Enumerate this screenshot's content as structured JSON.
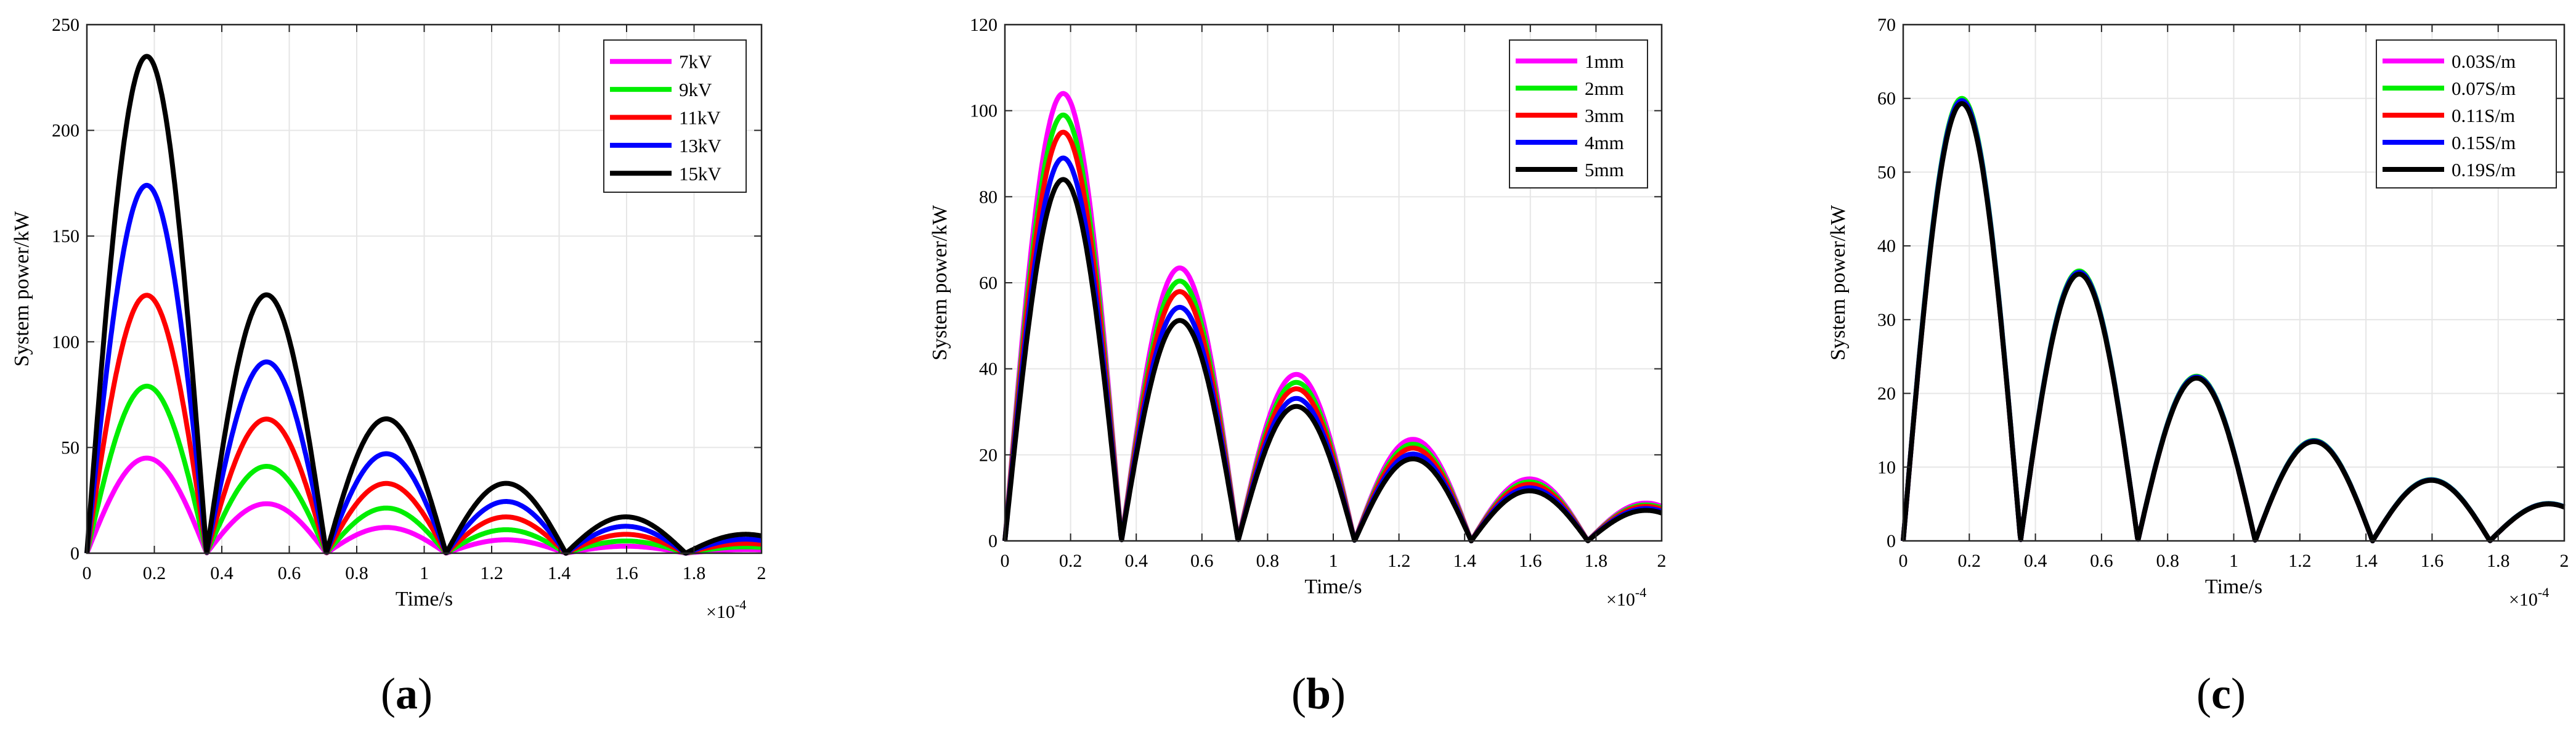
{
  "figure": {
    "chart_data": [
      {
        "type": "line",
        "panel_label": "a",
        "xlabel": "Time/s",
        "ylabel": "System power/kW",
        "x_exponent_label": "×10",
        "x_exponent_power": "-4",
        "xlim": [
          0,
          2
        ],
        "ylim": [
          0,
          250
        ],
        "xticks": [
          0,
          0.2,
          0.4,
          0.6,
          0.8,
          1,
          1.2,
          1.4,
          1.6,
          1.8,
          2
        ],
        "xtick_labels": [
          "0",
          "0.2",
          "0.4",
          "0.6",
          "0.8",
          "1",
          "1.2",
          "1.4",
          "1.6",
          "1.8",
          "2"
        ],
        "yticks": [
          0,
          50,
          100,
          150,
          200,
          250
        ],
        "ytick_labels": [
          "0",
          "50",
          "100",
          "150",
          "200",
          "250"
        ],
        "grid": true,
        "legend_position": "top-right",
        "half_period": 0.355,
        "decay": 0.52,
        "series": [
          {
            "name": "7kV",
            "color": "#ff00ff",
            "peak": 45
          },
          {
            "name": "9kV",
            "color": "#00ee00",
            "peak": 79
          },
          {
            "name": "11kV",
            "color": "#ff0000",
            "peak": 122
          },
          {
            "name": "13kV",
            "color": "#0000ff",
            "peak": 174
          },
          {
            "name": "15kV",
            "color": "#000000",
            "peak": 235
          }
        ]
      },
      {
        "type": "line",
        "panel_label": "b",
        "xlabel": "Time/s",
        "ylabel": "System power/kW",
        "x_exponent_label": "×10",
        "x_exponent_power": "-4",
        "xlim": [
          0,
          2
        ],
        "ylim": [
          0,
          120
        ],
        "xticks": [
          0,
          0.2,
          0.4,
          0.6,
          0.8,
          1,
          1.2,
          1.4,
          1.6,
          1.8,
          2
        ],
        "xtick_labels": [
          "0",
          "0.2",
          "0.4",
          "0.6",
          "0.8",
          "1",
          "1.2",
          "1.4",
          "1.6",
          "1.8",
          "2"
        ],
        "yticks": [
          0,
          20,
          40,
          60,
          80,
          100,
          120
        ],
        "ytick_labels": [
          "0",
          "20",
          "40",
          "60",
          "80",
          "100",
          "120"
        ],
        "grid": true,
        "legend_position": "top-right",
        "half_period": 0.355,
        "decay": 0.61,
        "series": [
          {
            "name": "1mm",
            "color": "#ff00ff",
            "peak": 104
          },
          {
            "name": "2mm",
            "color": "#00ee00",
            "peak": 99
          },
          {
            "name": "3mm",
            "color": "#ff0000",
            "peak": 95
          },
          {
            "name": "4mm",
            "color": "#0000ff",
            "peak": 89
          },
          {
            "name": "5mm",
            "color": "#000000",
            "peak": 84
          }
        ]
      },
      {
        "type": "line",
        "panel_label": "c",
        "xlabel": "Time/s",
        "ylabel": "System power/kW",
        "x_exponent_label": "×10",
        "x_exponent_power": "-4",
        "xlim": [
          0,
          2
        ],
        "ylim": [
          0,
          70
        ],
        "xticks": [
          0,
          0.2,
          0.4,
          0.6,
          0.8,
          1,
          1.2,
          1.4,
          1.6,
          1.8,
          2
        ],
        "xtick_labels": [
          "0",
          "0.2",
          "0.4",
          "0.6",
          "0.8",
          "1",
          "1.2",
          "1.4",
          "1.6",
          "1.8",
          "2"
        ],
        "yticks": [
          0,
          10,
          20,
          30,
          40,
          50,
          60,
          70
        ],
        "ytick_labels": [
          "0",
          "10",
          "20",
          "30",
          "40",
          "50",
          "60",
          "70"
        ],
        "grid": true,
        "legend_position": "top-right",
        "half_period": 0.355,
        "decay": 0.61,
        "series": [
          {
            "name": "0.03S/m",
            "color": "#ff00ff",
            "peak": 59.6
          },
          {
            "name": "0.07S/m",
            "color": "#00ee00",
            "peak": 60
          },
          {
            "name": "0.11S/m",
            "color": "#ff0000",
            "peak": 59.5
          },
          {
            "name": "0.15S/m",
            "color": "#0000ff",
            "peak": 59.7
          },
          {
            "name": "0.19S/m",
            "color": "#000000",
            "peak": 59.3
          }
        ]
      }
    ]
  }
}
